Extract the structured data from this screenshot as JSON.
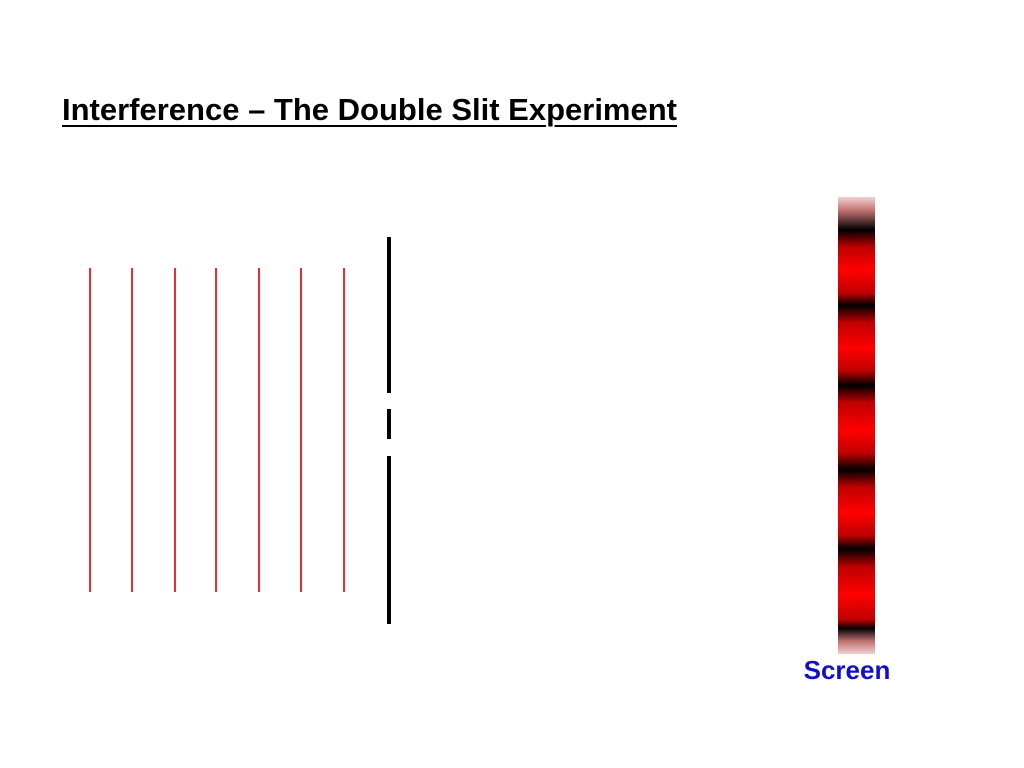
{
  "title": "Interference – The Double Slit Experiment",
  "screen_label": "Screen",
  "colors": {
    "wavefront": "#e53030",
    "barrier": "#000000",
    "fringe_bright": "#ff0000",
    "fringe_dark": "#000000",
    "label": "#1010cc"
  },
  "incident_wavefronts": 7,
  "slits": 2,
  "dark_fringes": 6
}
